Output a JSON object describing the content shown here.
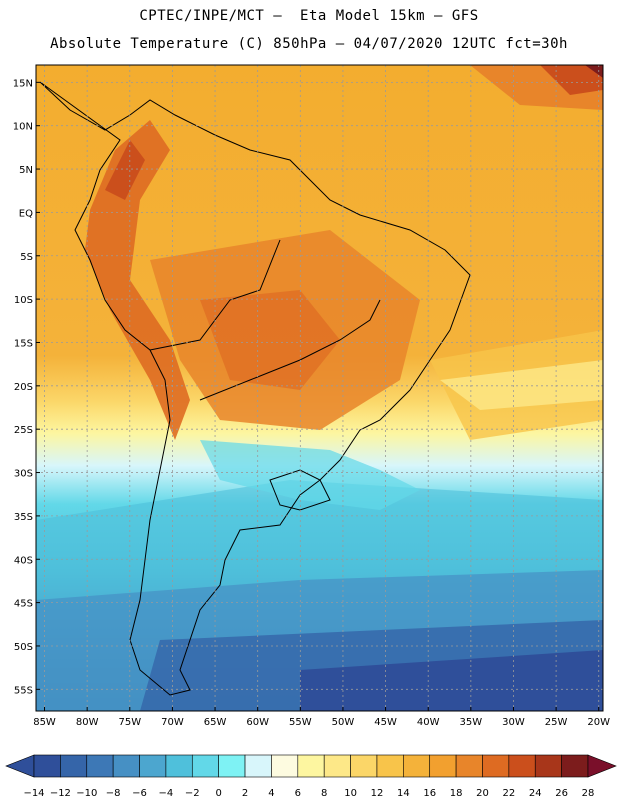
{
  "header": {
    "line1": "CPTEC/INPE/MCT –  Eta Model 15km – GFS",
    "line2": "Absolute Temperature (C) 850hPa – 04/07/2020 12UTC fct=30h"
  },
  "map": {
    "lat_labels": [
      "15N",
      "10N",
      "5N",
      "EQ",
      "5S",
      "10S",
      "15S",
      "20S",
      "25S",
      "30S",
      "35S",
      "40S",
      "45S",
      "50S",
      "55S"
    ],
    "lon_labels": [
      "85W",
      "80W",
      "75W",
      "70W",
      "65W",
      "60W",
      "55W",
      "50W",
      "45W",
      "40W",
      "35W",
      "30W",
      "25W",
      "20W"
    ],
    "extent": {
      "lon": [
        -86,
        -19.5
      ],
      "lat": [
        -57.5,
        17
      ]
    }
  },
  "colorbar": {
    "tick_labels": [
      "-14",
      "-12",
      "-10",
      "-8",
      "-6",
      "-4",
      "-2",
      "0",
      "2",
      "4",
      "6",
      "8",
      "10",
      "12",
      "14",
      "16",
      "18",
      "20",
      "22",
      "24",
      "26",
      "28"
    ],
    "colors": [
      "#2f4f9a",
      "#3565a9",
      "#3d78b6",
      "#4690c4",
      "#4ca6cf",
      "#4fc0db",
      "#62d8e8",
      "#7ef2f4",
      "#d8f6fb",
      "#fdfbe0",
      "#fdf6a0",
      "#fde888",
      "#fbd668",
      "#f8c44a",
      "#f4b23a",
      "#f2a02f",
      "#e8852a",
      "#de6b22",
      "#cb4f1c",
      "#a8361a",
      "#7c1c1c"
    ]
  }
}
